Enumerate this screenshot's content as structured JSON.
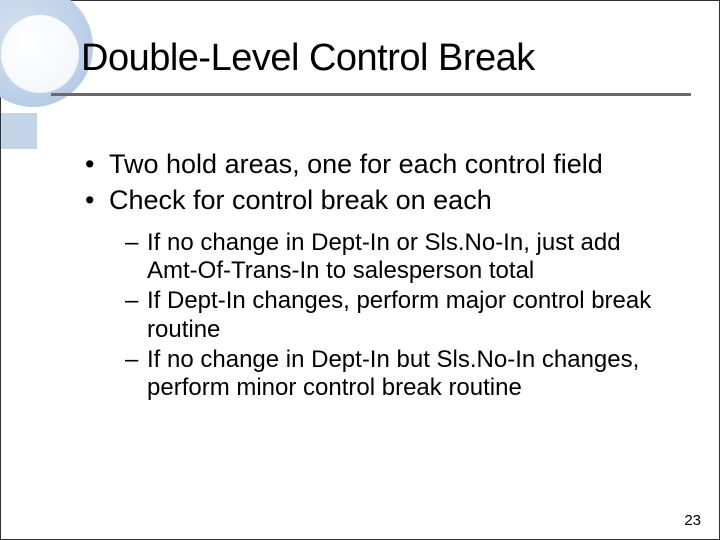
{
  "title": "Double-Level Control Break",
  "bullets": {
    "b1": "Two hold areas, one for each control field",
    "b2": "Check for control break on each"
  },
  "sub_bullets": {
    "s1": "If no change in Dept-In or Sls.No-In, just add Amt-Of-Trans-In to salesperson total",
    "s2": "If Dept-In changes, perform major control break routine",
    "s3": "If no change in Dept-In but Sls.No-In changes, perform minor control break routine"
  },
  "page_number": "23",
  "colors": {
    "accent_light": "#c4d4e8",
    "rule": "#6a6a6a",
    "text": "#000000",
    "background": "#ffffff"
  }
}
